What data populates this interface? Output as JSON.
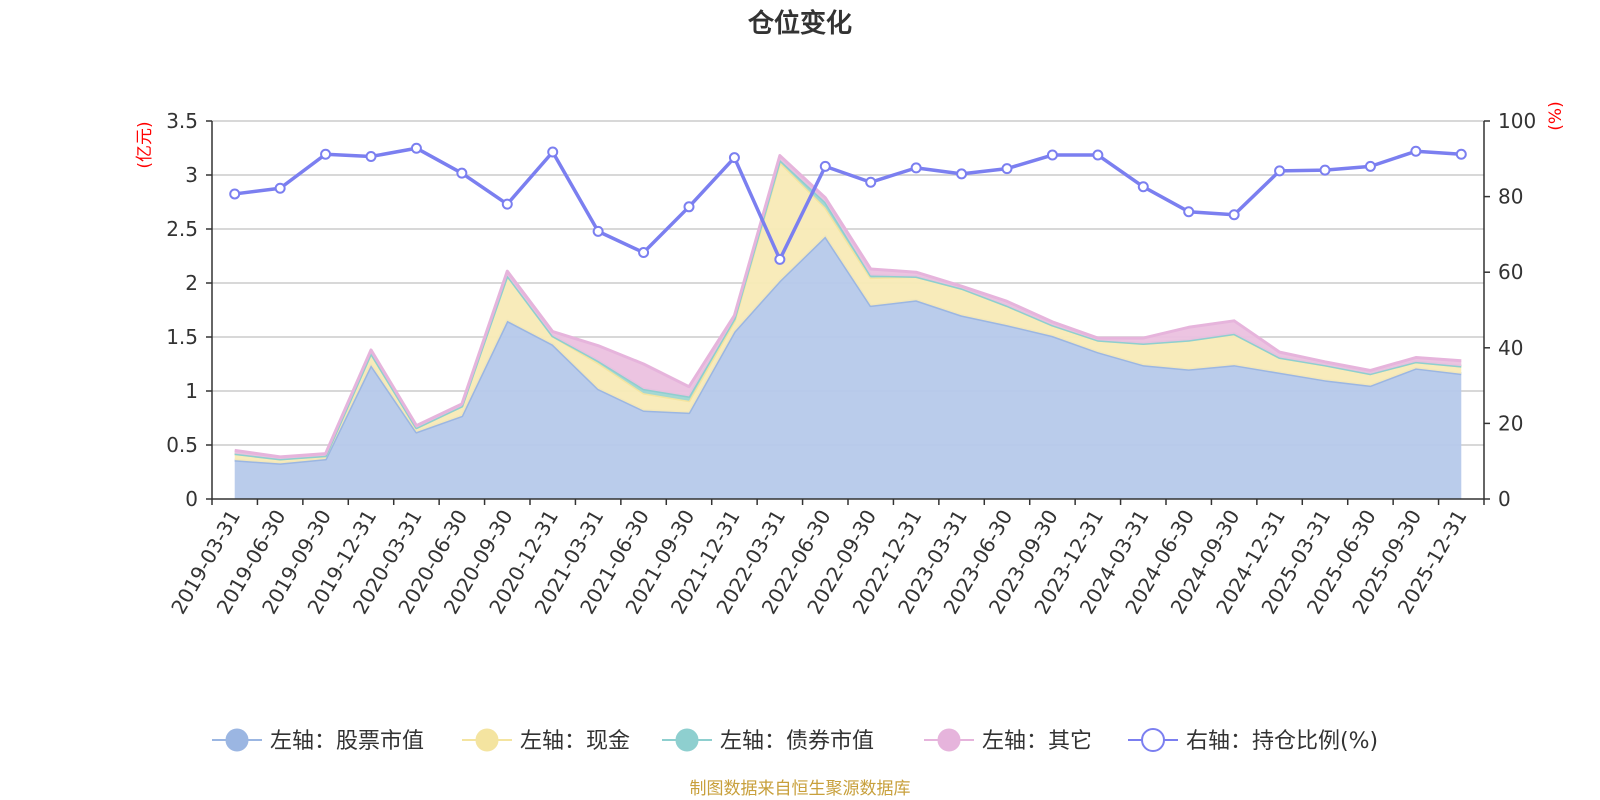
{
  "chart_data": {
    "type": "area",
    "title": "仓位变化",
    "left_axis_unit": "(亿元)",
    "right_axis_unit": "(%)",
    "left_ylim": [
      0,
      3.5
    ],
    "left_ticks": [
      "0",
      "0.5",
      "1",
      "1.5",
      "2",
      "2.5",
      "3",
      "3.5"
    ],
    "right_ylim": [
      0,
      100
    ],
    "right_ticks": [
      "0",
      "20",
      "40",
      "60",
      "80",
      "100"
    ],
    "categories": [
      "2019-03-31",
      "2019-06-30",
      "2019-09-30",
      "2019-12-31",
      "2020-03-31",
      "2020-06-30",
      "2020-09-30",
      "2020-12-31",
      "2021-03-31",
      "2021-06-30",
      "2021-09-30",
      "2021-12-31",
      "2022-03-31",
      "2022-06-30",
      "2022-09-30",
      "2022-12-31",
      "2023-03-31",
      "2023-06-30",
      "2023-09-30",
      "2023-12-31",
      "2024-03-31",
      "2024-06-30",
      "2024-09-30",
      "2024-12-31",
      "2025-03-31",
      "2025-06-30",
      "2025-09-30",
      "2025-12-31"
    ],
    "series": [
      {
        "name": "左轴：股票市值",
        "axis": "left",
        "kind": "stacked-area",
        "color": "#9bb6e2",
        "fill": "#b6c9ea",
        "values": [
          0.36,
          0.33,
          0.37,
          1.24,
          0.62,
          0.77,
          1.65,
          1.43,
          1.02,
          0.82,
          0.8,
          1.55,
          2.02,
          2.43,
          1.79,
          1.84,
          1.7,
          1.61,
          1.51,
          1.36,
          1.24,
          1.2,
          1.24,
          1.17,
          1.1,
          1.05,
          1.21,
          1.16
        ]
      },
      {
        "name": "左轴：现金",
        "axis": "left",
        "kind": "stacked-area",
        "color": "#f4e4a0",
        "fill": "#f8eab6",
        "values": [
          0.06,
          0.04,
          0.03,
          0.11,
          0.04,
          0.09,
          0.42,
          0.08,
          0.24,
          0.16,
          0.11,
          0.1,
          1.1,
          0.27,
          0.26,
          0.22,
          0.25,
          0.18,
          0.1,
          0.11,
          0.2,
          0.27,
          0.29,
          0.14,
          0.14,
          0.11,
          0.06,
          0.07
        ]
      },
      {
        "name": "左轴：债券市值",
        "axis": "left",
        "kind": "stacked-area",
        "color": "#8ecfcf",
        "fill": "#9fd6d4",
        "values": [
          0,
          0,
          0,
          0,
          0,
          0,
          0,
          0,
          0.02,
          0.04,
          0.04,
          0.02,
          0.02,
          0.05,
          0.02,
          0,
          0,
          0,
          0,
          0,
          0,
          0,
          0,
          0,
          0,
          0,
          0,
          0
        ]
      },
      {
        "name": "左轴：其它",
        "axis": "left",
        "kind": "stacked-area",
        "color": "#e6b4dc",
        "fill": "#ebc1df",
        "values": [
          0.03,
          0.02,
          0.02,
          0.03,
          0.02,
          0.02,
          0.04,
          0.04,
          0.14,
          0.23,
          0.09,
          0.03,
          0.04,
          0.04,
          0.06,
          0.04,
          0.02,
          0.04,
          0.03,
          0.02,
          0.05,
          0.12,
          0.12,
          0.05,
          0.03,
          0.03,
          0.04,
          0.05
        ]
      },
      {
        "name": "右轴：持仓比例(%)",
        "axis": "right",
        "kind": "line",
        "color": "#7b7ff0",
        "values": [
          80.7,
          82.2,
          91.2,
          90.6,
          92.8,
          86.2,
          78.0,
          91.8,
          70.8,
          65.2,
          77.3,
          90.3,
          63.4,
          88.0,
          83.8,
          87.6,
          86.0,
          87.4,
          91.0,
          91.0,
          82.6,
          76.0,
          75.2,
          86.8,
          87.0,
          88.0,
          92.0,
          91.2
        ]
      }
    ],
    "legend": [
      "左轴：股票市值",
      "左轴：现金",
      "左轴：债券市值",
      "左轴：其它",
      "右轴：持仓比例(%)"
    ],
    "legend_position": "bottom",
    "grid": true,
    "source_note": "制图数据来自恒生聚源数据库"
  }
}
